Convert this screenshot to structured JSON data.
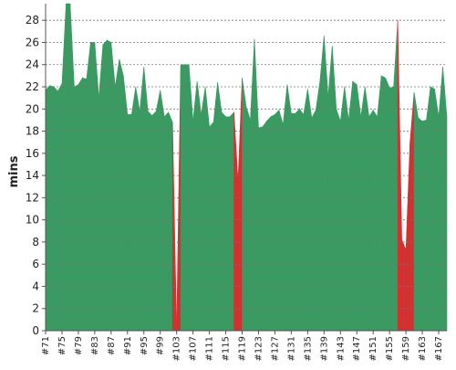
{
  "chart_data": {
    "type": "area",
    "ylabel": "mins",
    "ylim": [
      0,
      29.5
    ],
    "y_ticks": [
      0,
      2,
      4,
      6,
      8,
      10,
      12,
      14,
      16,
      18,
      20,
      22,
      24,
      26,
      28
    ],
    "grid": "horizontal dashed",
    "x_tick_labels": [
      "#71",
      "#75",
      "#79",
      "#83",
      "#87",
      "#91",
      "#95",
      "#99",
      "#103",
      "#107",
      "#111",
      "#115",
      "#119",
      "#123",
      "#127",
      "#131",
      "#135",
      "#139",
      "#143",
      "#147",
      "#151",
      "#155",
      "#159",
      "#163",
      "#167"
    ],
    "x": [
      "#71",
      "#72",
      "#73",
      "#74",
      "#75",
      "#76",
      "#77",
      "#78",
      "#79",
      "#80",
      "#81",
      "#82",
      "#83",
      "#84",
      "#85",
      "#86",
      "#87",
      "#88",
      "#89",
      "#90",
      "#91",
      "#92",
      "#93",
      "#94",
      "#95",
      "#96",
      "#97",
      "#98",
      "#99",
      "#100",
      "#101",
      "#102",
      "#103",
      "#104",
      "#105",
      "#106",
      "#107",
      "#108",
      "#109",
      "#110",
      "#111",
      "#112",
      "#113",
      "#114",
      "#115",
      "#116",
      "#117",
      "#118",
      "#119",
      "#120",
      "#121",
      "#122",
      "#123",
      "#124",
      "#125",
      "#126",
      "#127",
      "#128",
      "#129",
      "#130",
      "#131",
      "#132",
      "#133",
      "#134",
      "#135",
      "#136",
      "#137",
      "#138",
      "#139",
      "#140",
      "#141",
      "#142",
      "#143",
      "#144",
      "#145",
      "#146",
      "#147",
      "#148",
      "#149",
      "#150",
      "#151",
      "#152",
      "#153",
      "#154",
      "#155",
      "#156",
      "#157",
      "#158",
      "#159",
      "#160",
      "#161",
      "#162",
      "#163",
      "#164",
      "#165",
      "#166",
      "#167",
      "#168",
      "#169"
    ],
    "values": [
      21.7,
      22.1,
      22.0,
      21.6,
      22.3,
      29.5,
      29.5,
      22.0,
      22.2,
      22.8,
      22.7,
      26.0,
      26.0,
      21.0,
      25.8,
      26.2,
      26.0,
      22.0,
      24.5,
      23.0,
      19.5,
      19.5,
      22.0,
      19.8,
      23.8,
      19.8,
      19.4,
      19.8,
      21.7,
      19.3,
      19.7,
      18.8,
      0,
      24.0,
      24.0,
      24.0,
      18.9,
      22.5,
      19.5,
      22.0,
      18.4,
      18.8,
      22.4,
      19.7,
      19.3,
      19.3,
      19.7,
      13.5,
      22.8,
      20.2,
      19.0,
      26.3,
      18.3,
      18.4,
      18.9,
      19.3,
      19.5,
      19.9,
      18.6,
      22.2,
      19.6,
      19.6,
      20.0,
      19.5,
      21.8,
      19.2,
      19.9,
      22.5,
      26.6,
      21.1,
      25.7,
      20.0,
      18.9,
      22.0,
      19.0,
      22.5,
      22.2,
      19.3,
      22.0,
      19.3,
      19.9,
      19.3,
      23.0,
      22.8,
      21.9,
      22.0,
      28.0,
      8.2,
      7.3,
      17.0,
      21.5,
      19.2,
      18.9,
      19.0,
      22.0,
      21.8,
      19.3,
      23.8,
      19.3
    ],
    "status": [
      "ok",
      "ok",
      "ok",
      "ok",
      "ok",
      "ok",
      "ok",
      "ok",
      "ok",
      "ok",
      "ok",
      "ok",
      "ok",
      "ok",
      "ok",
      "ok",
      "ok",
      "ok",
      "ok",
      "ok",
      "ok",
      "ok",
      "ok",
      "ok",
      "ok",
      "ok",
      "ok",
      "ok",
      "ok",
      "ok",
      "ok",
      "ok",
      "fail",
      "ok",
      "ok",
      "ok",
      "ok",
      "ok",
      "ok",
      "ok",
      "ok",
      "ok",
      "ok",
      "ok",
      "ok",
      "ok",
      "ok",
      "fail",
      "ok",
      "ok",
      "ok",
      "ok",
      "ok",
      "ok",
      "ok",
      "ok",
      "ok",
      "ok",
      "ok",
      "ok",
      "ok",
      "ok",
      "ok",
      "ok",
      "ok",
      "ok",
      "ok",
      "ok",
      "ok",
      "ok",
      "ok",
      "ok",
      "ok",
      "ok",
      "ok",
      "ok",
      "ok",
      "ok",
      "ok",
      "ok",
      "ok",
      "ok",
      "ok",
      "ok",
      "ok",
      "ok",
      "ok",
      "fail",
      "fail",
      "fail",
      "ok",
      "ok",
      "ok",
      "ok",
      "ok",
      "ok",
      "ok",
      "ok",
      "ok"
    ],
    "colors": {
      "ok": "#3a9a62",
      "fail": "#d23131",
      "grid": "#777777",
      "axis": "#555555"
    }
  }
}
